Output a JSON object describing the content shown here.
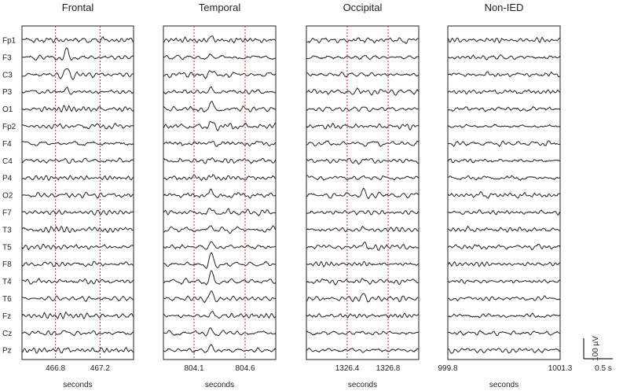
{
  "chart_data": {
    "type": "line",
    "channels": [
      "Fp1",
      "F3",
      "C3",
      "P3",
      "O1",
      "Fp2",
      "F4",
      "C4",
      "P4",
      "O2",
      "F7",
      "T3",
      "T5",
      "F8",
      "T4",
      "T6",
      "Fz",
      "Cz",
      "Pz"
    ],
    "xlabel": "seconds",
    "scale_bar": {
      "amplitude": "100 µV",
      "time": "0.5 s"
    },
    "marker_color": "#d62728",
    "trace_color": "#222222",
    "panels": [
      {
        "title": "Frontal",
        "xlim": [
          466.5,
          467.5
        ],
        "ticks": [
          466.8,
          467.2
        ],
        "tick_labels": [
          "466.8",
          "467.2"
        ],
        "markers": [
          466.8,
          467.2
        ],
        "event": {
          "center": 466.9,
          "width": 0.05,
          "amp": [
            0.2,
            1.6,
            1.1,
            0.9,
            0.3,
            0.2,
            0.1,
            0.1,
            0.1,
            0,
            0,
            0,
            0,
            0,
            0,
            0,
            0.4,
            0.3,
            0.2
          ]
        }
      },
      {
        "title": "Temporal",
        "xlim": [
          803.8,
          804.9
        ],
        "ticks": [
          804.1,
          804.6
        ],
        "tick_labels": [
          "804.1",
          "804.6"
        ],
        "markers": [
          804.1,
          804.6
        ],
        "event": {
          "center": 804.27,
          "width": 0.06,
          "amp": [
            0.6,
            0.5,
            0.6,
            0.7,
            1.4,
            0.9,
            0.5,
            0.4,
            0.5,
            0.7,
            0.5,
            0.6,
            0.8,
            1.8,
            1.6,
            1.3,
            0.6,
            0.9,
            1.0
          ]
        }
      },
      {
        "title": "Occipital",
        "xlim": [
          1326.0,
          1327.1
        ],
        "ticks": [
          1326.4,
          1326.8
        ],
        "tick_labels": [
          "1326.4",
          "1326.8"
        ],
        "markers": [
          1326.4,
          1326.8
        ],
        "event": {
          "center": 1326.56,
          "width": 0.05,
          "amp": [
            0,
            0,
            0,
            0.1,
            0.3,
            0,
            0,
            0,
            0.3,
            1.5,
            0.2,
            0.3,
            0.7,
            0.3,
            0.3,
            0.8,
            0,
            0,
            0
          ]
        }
      },
      {
        "title": "Non-IED",
        "xlim": [
          999.8,
          1001.3
        ],
        "ticks": [
          999.8,
          1001.3
        ],
        "tick_labels": [
          "999.8",
          "1001.3"
        ],
        "markers": [],
        "event": null
      }
    ]
  }
}
